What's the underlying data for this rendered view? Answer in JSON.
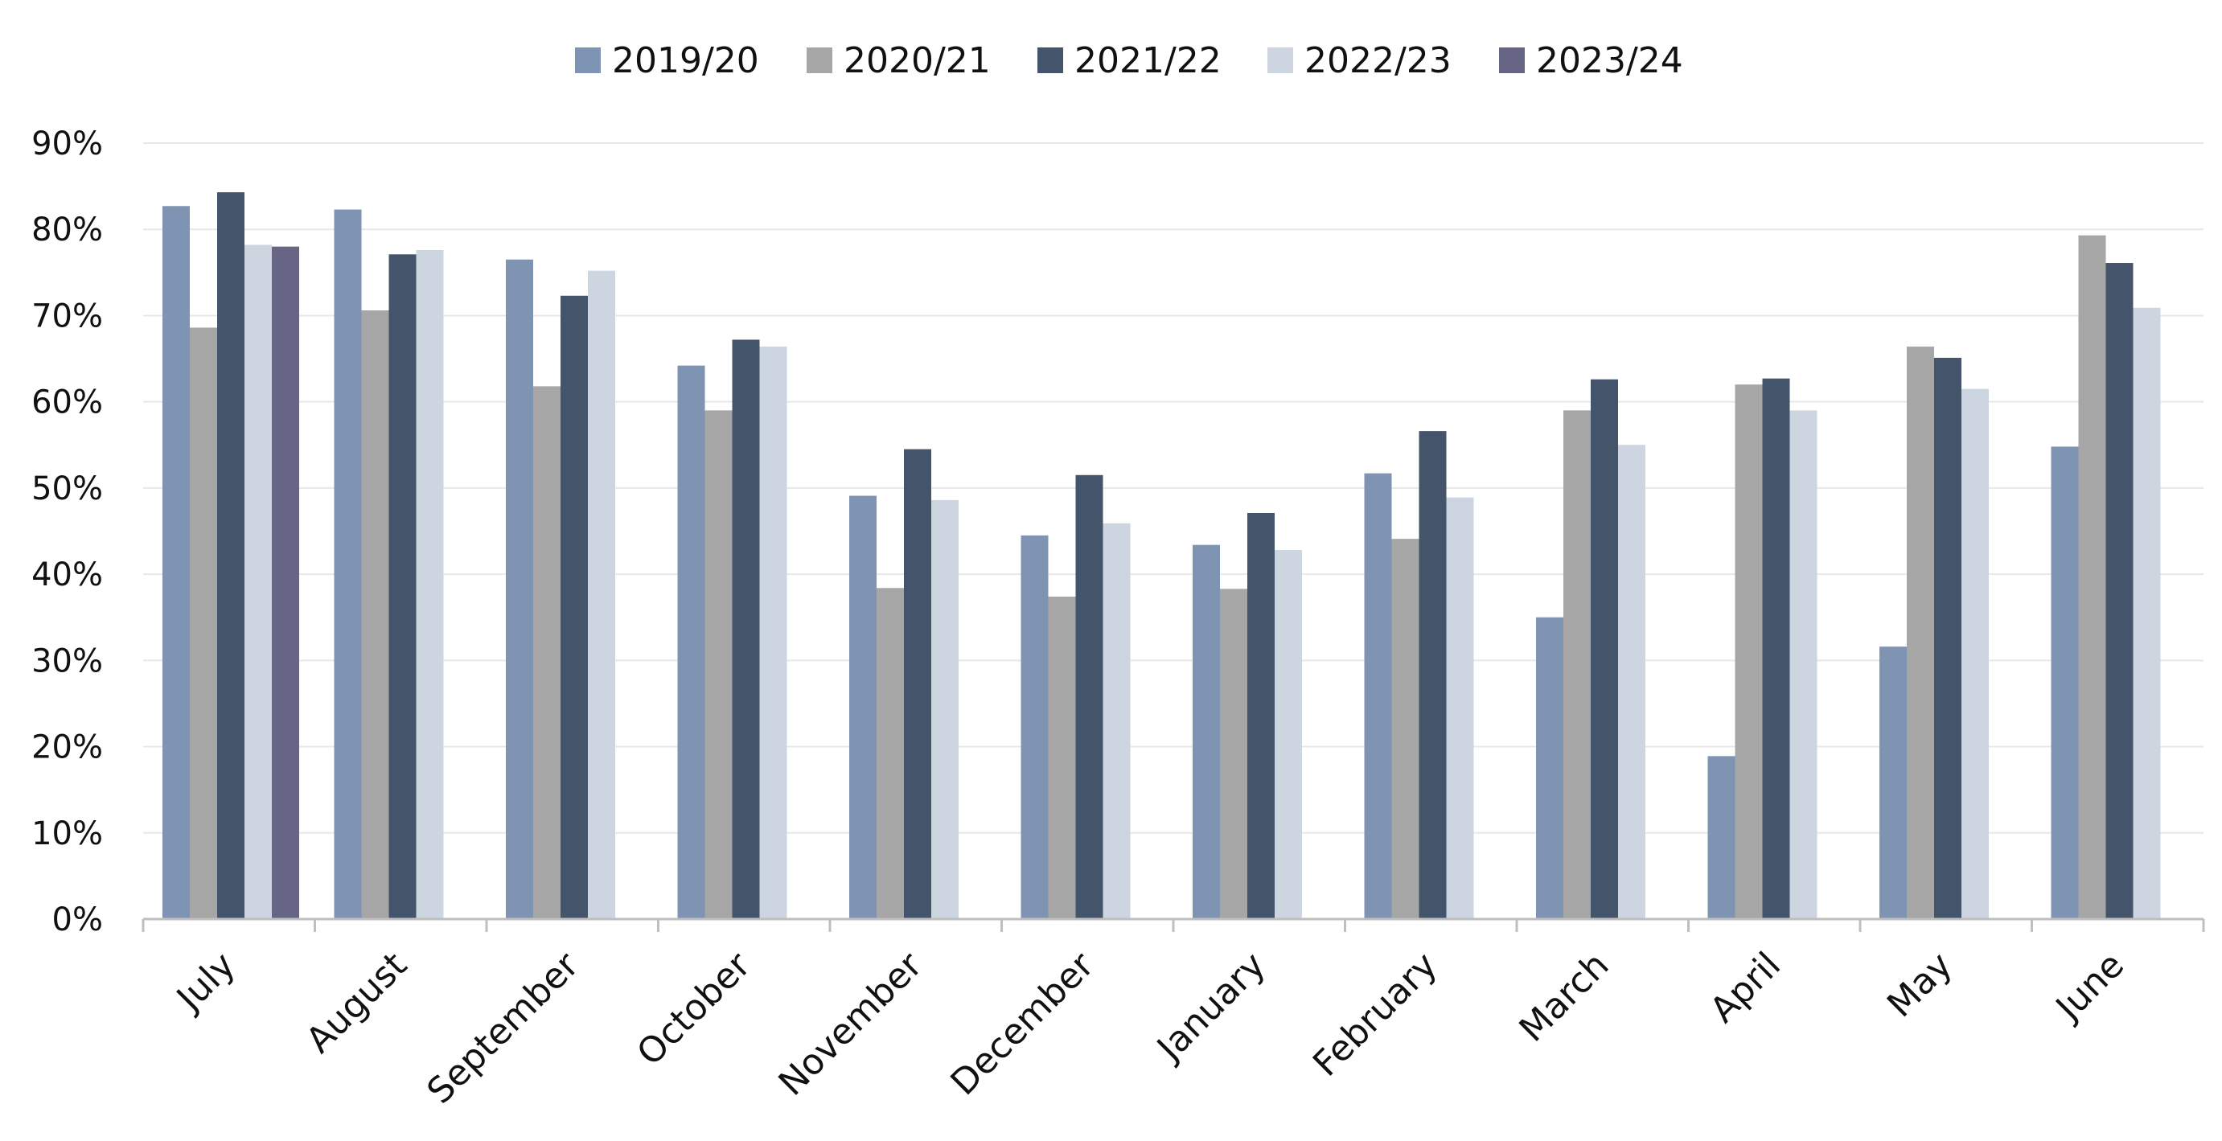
{
  "chart_data": {
    "type": "bar",
    "categories": [
      "July",
      "August",
      "September",
      "October",
      "November",
      "December",
      "January",
      "February",
      "March",
      "April",
      "May",
      "June"
    ],
    "series": [
      {
        "name": "2019/20",
        "color": "#7F93B2",
        "values": [
          82.7,
          82.3,
          76.5,
          64.2,
          49.1,
          44.5,
          43.4,
          51.7,
          35.0,
          18.9,
          31.6,
          54.8
        ]
      },
      {
        "name": "2020/21",
        "color": "#A6A6A6",
        "values": [
          68.6,
          70.6,
          61.8,
          59.0,
          38.4,
          37.4,
          38.3,
          44.1,
          59.0,
          62.0,
          66.4,
          79.3
        ]
      },
      {
        "name": "2021/22",
        "color": "#44546A",
        "values": [
          84.3,
          77.1,
          72.3,
          67.2,
          54.5,
          51.5,
          47.1,
          56.6,
          62.6,
          62.7,
          65.1,
          76.1
        ]
      },
      {
        "name": "2022/23",
        "color": "#CCD5E0",
        "values": [
          78.2,
          77.6,
          75.2,
          66.4,
          48.6,
          45.9,
          42.8,
          48.9,
          55.0,
          59.0,
          61.5,
          70.9
        ]
      },
      {
        "name": "2023/24",
        "color": "#676585",
        "values": [
          78.0,
          null,
          null,
          null,
          null,
          null,
          null,
          null,
          null,
          null,
          null,
          null
        ]
      }
    ],
    "ylim": [
      0,
      90
    ],
    "yticks": [
      {
        "value": 0,
        "label": "0%"
      },
      {
        "value": 10,
        "label": "10%"
      },
      {
        "value": 20,
        "label": "20%"
      },
      {
        "value": 30,
        "label": "30%"
      },
      {
        "value": 40,
        "label": "40%"
      },
      {
        "value": 50,
        "label": "50%"
      },
      {
        "value": 60,
        "label": "60%"
      },
      {
        "value": 70,
        "label": "70%"
      },
      {
        "value": 80,
        "label": "80%"
      },
      {
        "value": 90,
        "label": "90%"
      }
    ],
    "grid": true,
    "legend": "top-center",
    "title": "",
    "xlabel": "",
    "ylabel": ""
  },
  "colors": {
    "gridline": "#E8E8E8",
    "axis": "#BFBFBF",
    "text": "#111111"
  }
}
